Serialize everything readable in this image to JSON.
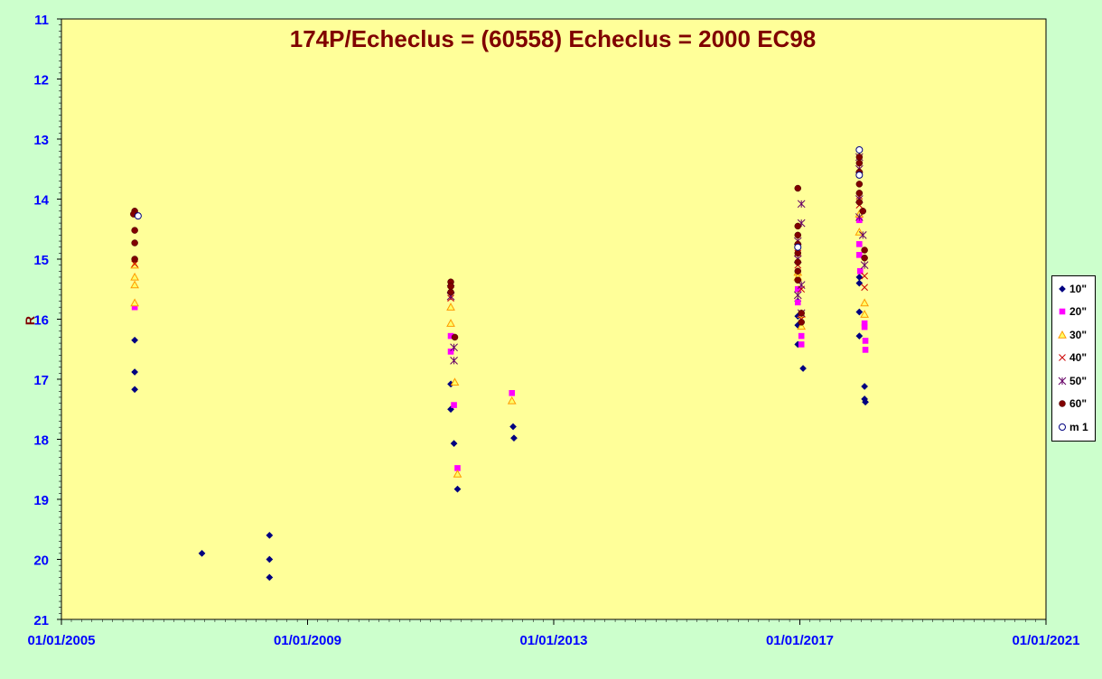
{
  "chart_data": {
    "type": "scatter",
    "title": "174P/Echeclus = (60558) Echeclus = 2000 EC98",
    "xlabel": "",
    "ylabel": "R",
    "xlim": [
      "2005-01-01",
      "2021-01-01"
    ],
    "ylim": [
      21,
      11
    ],
    "y_inverted": true,
    "x_tick_labels": [
      "01/01/2005",
      "01/01/2009",
      "01/01/2013",
      "01/01/2017",
      "01/01/2021"
    ],
    "y_tick_labels": [
      "11",
      "12",
      "13",
      "14",
      "15",
      "16",
      "17",
      "18",
      "19",
      "20",
      "21"
    ],
    "grid": false,
    "legend_position": "right",
    "colors": {
      "background": "#ccffcc",
      "plot_area": "#ffff99",
      "title": "#800000",
      "tick_labels": "#0000ff",
      "ylabel": "#800000"
    },
    "series": [
      {
        "name": "10\"",
        "marker": "diamond",
        "color": "#000080",
        "points": [
          [
            "2006-03-12",
            16.35
          ],
          [
            "2006-03-12",
            16.88
          ],
          [
            "2006-03-12",
            17.17
          ],
          [
            "2007-04-15",
            19.9
          ],
          [
            "2008-05-20",
            19.6
          ],
          [
            "2008-05-20",
            20.0
          ],
          [
            "2008-05-20",
            20.3
          ],
          [
            "2011-05-01",
            17.08
          ],
          [
            "2011-05-01",
            17.5
          ],
          [
            "2011-05-20",
            18.07
          ],
          [
            "2011-06-10",
            18.83
          ],
          [
            "2012-05-05",
            17.79
          ],
          [
            "2012-05-10",
            17.98
          ],
          [
            "2016-12-20",
            15.7
          ],
          [
            "2016-12-20",
            15.95
          ],
          [
            "2016-12-20",
            16.1
          ],
          [
            "2016-12-20",
            16.42
          ],
          [
            "2017-01-20",
            16.82
          ],
          [
            "2017-12-20",
            15.3
          ],
          [
            "2017-12-20",
            15.4
          ],
          [
            "2017-12-20",
            15.88
          ],
          [
            "2017-12-20",
            16.28
          ],
          [
            "2018-01-20",
            17.12
          ],
          [
            "2018-01-20",
            17.33
          ],
          [
            "2018-01-25",
            17.38
          ]
        ]
      },
      {
        "name": "20\"",
        "marker": "square",
        "color": "#ff00ff",
        "points": [
          [
            "2006-03-12",
            15.8
          ],
          [
            "2011-05-01",
            16.28
          ],
          [
            "2011-05-01",
            16.54
          ],
          [
            "2011-05-20",
            17.43
          ],
          [
            "2011-06-10",
            18.48
          ],
          [
            "2012-04-28",
            17.23
          ],
          [
            "2016-12-20",
            15.5
          ],
          [
            "2016-12-20",
            15.72
          ],
          [
            "2017-01-10",
            16.28
          ],
          [
            "2017-01-10",
            16.42
          ],
          [
            "2017-12-20",
            14.35
          ],
          [
            "2017-12-20",
            14.75
          ],
          [
            "2017-12-20",
            14.93
          ],
          [
            "2017-12-25",
            15.2
          ],
          [
            "2018-01-20",
            16.07
          ],
          [
            "2018-01-20",
            16.13
          ],
          [
            "2018-01-25",
            16.36
          ],
          [
            "2018-01-25",
            16.51
          ]
        ]
      },
      {
        "name": "30\"",
        "marker": "triangle",
        "color": "#ff9900",
        "points": [
          [
            "2006-03-12",
            15.1
          ],
          [
            "2006-03-12",
            15.3
          ],
          [
            "2006-03-12",
            15.43
          ],
          [
            "2006-03-12",
            15.73
          ],
          [
            "2011-05-01",
            15.8
          ],
          [
            "2011-05-01",
            16.07
          ],
          [
            "2011-05-25",
            17.05
          ],
          [
            "2011-06-10",
            18.58
          ],
          [
            "2012-04-28",
            17.36
          ],
          [
            "2016-12-20",
            15.22
          ],
          [
            "2016-12-20",
            15.3
          ],
          [
            "2017-01-10",
            15.92
          ],
          [
            "2017-01-10",
            16.12
          ],
          [
            "2017-12-20",
            14.25
          ],
          [
            "2017-12-20",
            14.55
          ],
          [
            "2018-01-20",
            15.73
          ],
          [
            "2018-01-20",
            15.92
          ]
        ]
      },
      {
        "name": "40\"",
        "marker": "x",
        "color": "#cc0000",
        "points": [
          [
            "2006-03-12",
            15.08
          ],
          [
            "2011-05-01",
            15.52
          ],
          [
            "2011-05-01",
            15.65
          ],
          [
            "2016-12-20",
            14.9
          ],
          [
            "2016-12-20",
            15.1
          ],
          [
            "2017-01-10",
            15.5
          ],
          [
            "2017-01-10",
            16.0
          ],
          [
            "2017-12-20",
            13.95
          ],
          [
            "2017-12-20",
            14.1
          ],
          [
            "2018-01-20",
            15.28
          ],
          [
            "2018-01-20",
            15.47
          ]
        ]
      },
      {
        "name": "50\"",
        "marker": "star",
        "color": "#660066",
        "points": [
          [
            "2011-05-01",
            15.5
          ],
          [
            "2011-05-01",
            15.62
          ],
          [
            "2011-05-20",
            16.47
          ],
          [
            "2011-05-20",
            16.69
          ],
          [
            "2016-12-20",
            14.7
          ],
          [
            "2016-12-20",
            15.0
          ],
          [
            "2016-12-20",
            15.6
          ],
          [
            "2017-01-10",
            14.08
          ],
          [
            "2017-01-10",
            14.4
          ],
          [
            "2017-01-10",
            15.43
          ],
          [
            "2017-01-10",
            15.9
          ],
          [
            "2017-12-20",
            13.3
          ],
          [
            "2017-12-20",
            13.5
          ],
          [
            "2017-12-20",
            14.0
          ],
          [
            "2017-12-20",
            14.3
          ],
          [
            "2018-01-10",
            14.6
          ],
          [
            "2018-01-20",
            15.1
          ]
        ]
      },
      {
        "name": "60\"",
        "marker": "circle",
        "color": "#800000",
        "points": [
          [
            "2006-03-12",
            14.2
          ],
          [
            "2006-03-05",
            14.25
          ],
          [
            "2006-03-12",
            14.52
          ],
          [
            "2006-03-12",
            14.73
          ],
          [
            "2006-03-12",
            15.0
          ],
          [
            "2011-05-01",
            15.38
          ],
          [
            "2011-05-01",
            15.45
          ],
          [
            "2011-05-01",
            15.55
          ],
          [
            "2011-05-25",
            16.3
          ],
          [
            "2016-12-20",
            13.82
          ],
          [
            "2016-12-20",
            14.45
          ],
          [
            "2016-12-20",
            14.6
          ],
          [
            "2016-12-20",
            14.75
          ],
          [
            "2016-12-20",
            14.9
          ],
          [
            "2016-12-20",
            15.05
          ],
          [
            "2016-12-20",
            15.2
          ],
          [
            "2016-12-20",
            15.35
          ],
          [
            "2017-01-10",
            15.9
          ],
          [
            "2017-01-10",
            16.05
          ],
          [
            "2017-12-20",
            13.3
          ],
          [
            "2017-12-20",
            13.4
          ],
          [
            "2017-12-20",
            13.55
          ],
          [
            "2017-12-20",
            13.75
          ],
          [
            "2017-12-20",
            13.9
          ],
          [
            "2017-12-20",
            14.05
          ],
          [
            "2018-01-10",
            14.2
          ],
          [
            "2018-01-20",
            14.85
          ],
          [
            "2018-01-20",
            14.98
          ]
        ]
      },
      {
        "name": "m 1",
        "marker": "open-circle",
        "color": "#ffffff",
        "points": [
          [
            "2006-04-01",
            14.28
          ],
          [
            "2016-12-20",
            14.8
          ],
          [
            "2017-12-20",
            13.18
          ],
          [
            "2017-12-20",
            13.6
          ]
        ]
      }
    ]
  }
}
